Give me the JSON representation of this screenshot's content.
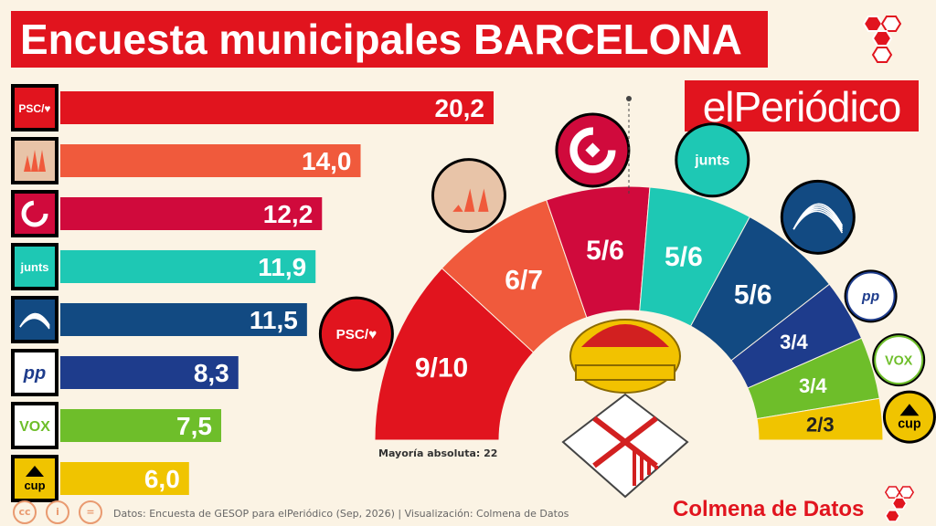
{
  "title": "Encuesta municipales BARCELONA",
  "brand": "elPeriódico",
  "footer": {
    "source": "Datos: Encuesta de GESOP para elPeriódico (Sep, 2026) | Visualización: Colmena de Datos",
    "brand": "Colmena de Datos",
    "license_icons": [
      "cc-icon",
      "by-icon",
      "nd-icon"
    ]
  },
  "chart_data": [
    {
      "type": "bar",
      "orientation": "horizontal",
      "categories": [
        "PSC",
        "ERC",
        "BComú",
        "Junts",
        "Trias",
        "PP",
        "Vox",
        "CUP"
      ],
      "values": [
        20.2,
        14.0,
        12.2,
        11.9,
        11.5,
        8.3,
        7.5,
        6.0
      ],
      "value_labels": [
        "20,2",
        "14,0",
        "12,2",
        "11,9",
        "11,5",
        "8,3",
        "7,5",
        "6,0"
      ],
      "colors": [
        "#e1141e",
        "#f05a3c",
        "#d00a3c",
        "#1ec8b4",
        "#124a82",
        "#1e3c8c",
        "#6ebe2a",
        "#f0c400"
      ],
      "logos": [
        "PSC/♥",
        "",
        "",
        "junts",
        "",
        "pp",
        "vox",
        "cup"
      ]
    },
    {
      "type": "pie",
      "variant": "parliament-semicircle",
      "annotation": "Mayoría absoluta: 22",
      "series": [
        {
          "party": "PSC",
          "seats_label": "9/10",
          "seats": [
            9,
            10
          ],
          "color": "#e1141e"
        },
        {
          "party": "ERC",
          "seats_label": "6/7",
          "seats": [
            6,
            7
          ],
          "color": "#f05a3c"
        },
        {
          "party": "BComú",
          "seats_label": "5/6",
          "seats": [
            5,
            6
          ],
          "color": "#d00a3c"
        },
        {
          "party": "Junts",
          "seats_label": "5/6",
          "seats": [
            5,
            6
          ],
          "color": "#1ec8b4"
        },
        {
          "party": "Trias",
          "seats_label": "5/6",
          "seats": [
            5,
            6
          ],
          "color": "#124a82"
        },
        {
          "party": "PP",
          "seats_label": "3/4",
          "seats": [
            3,
            4
          ],
          "color": "#1e3c8c"
        },
        {
          "party": "Vox",
          "seats_label": "3/4",
          "seats": [
            3,
            4
          ],
          "color": "#6ebe2a"
        },
        {
          "party": "CUP",
          "seats_label": "2/3",
          "seats": [
            2,
            3
          ],
          "color": "#f0c400"
        }
      ],
      "logos": [
        "PSC/♥",
        "",
        "",
        "junts",
        "",
        "pp",
        "vox",
        "cup"
      ]
    }
  ]
}
